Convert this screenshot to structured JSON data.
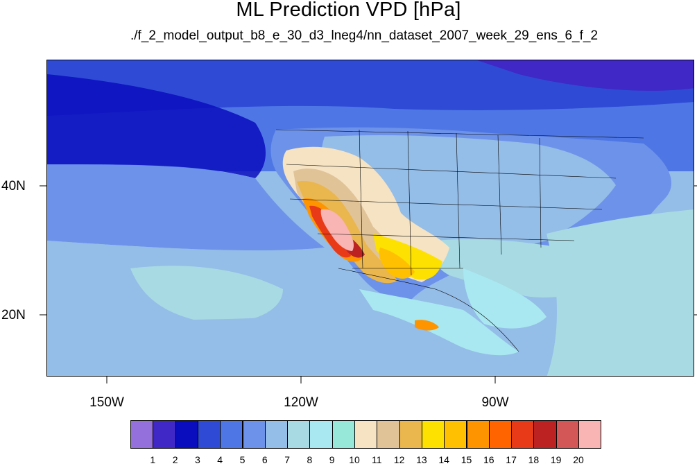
{
  "title": "ML Prediction VPD [hPa]",
  "subtitle": "./f_2_model_output_b8_e_30_d3_lneg4/nn_dataset_2007_week_29_ens_6_f_2",
  "map": {
    "lat_labels": [
      "40N",
      "20N"
    ],
    "lon_labels": [
      "150W",
      "120W",
      "90W"
    ]
  },
  "colorbar": {
    "labels": [
      "1",
      "2",
      "3",
      "4",
      "5",
      "6",
      "7",
      "8",
      "9",
      "10",
      "11",
      "12",
      "13",
      "14",
      "15",
      "16",
      "17",
      "18",
      "19",
      "20"
    ],
    "colors": [
      "#9370db",
      "#3f28c6",
      "#0a0dbd",
      "#2f4bd6",
      "#4e77e5",
      "#6d92ea",
      "#94bde8",
      "#a8dae3",
      "#a9e8f0",
      "#98e8d9",
      "#f5e3c3",
      "#e1c398",
      "#eab64e",
      "#fde100",
      "#fec000",
      "#fe9400",
      "#ff6400",
      "#e83a18",
      "#bd2222",
      "#d45757",
      "#f9b4b4"
    ]
  }
}
